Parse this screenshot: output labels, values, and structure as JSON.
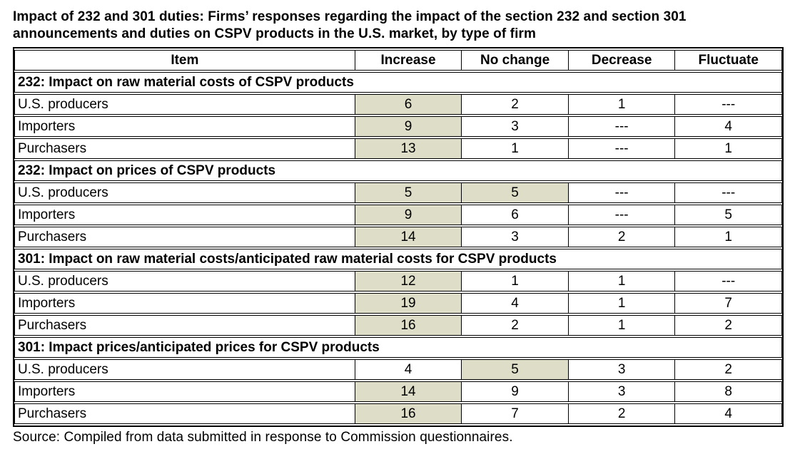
{
  "title": "Impact of 232 and 301 duties: Firms’ responses regarding the impact of the section 232 and section 301 announcements and duties on CSPV products in the U.S. market, by type of firm",
  "source": "Source: Compiled from data submitted in response to Commission questionnaires.",
  "colors": {
    "highlight": "#deddc7",
    "border": "#000000",
    "background": "#ffffff",
    "text": "#000000"
  },
  "table": {
    "columns": [
      "Item",
      "Increase",
      "No change",
      "Decrease",
      "Fluctuate"
    ],
    "column_widths_pct": [
      44.4,
      13.9,
      13.9,
      13.9,
      13.9
    ],
    "sections": [
      {
        "header": "232: Impact on raw material costs of CSPV products",
        "rows": [
          {
            "item": "U.S. producers",
            "values": [
              "6",
              "2",
              "1",
              "---"
            ],
            "highlighted": [
              0
            ]
          },
          {
            "item": "Importers",
            "values": [
              "9",
              "3",
              "---",
              "4"
            ],
            "highlighted": [
              0
            ]
          },
          {
            "item": "Purchasers",
            "values": [
              "13",
              "1",
              "---",
              "1"
            ],
            "highlighted": [
              0
            ]
          }
        ]
      },
      {
        "header": "232: Impact on prices of CSPV products",
        "rows": [
          {
            "item": "U.S. producers",
            "values": [
              "5",
              "5",
              "---",
              "---"
            ],
            "highlighted": [
              0,
              1
            ]
          },
          {
            "item": "Importers",
            "values": [
              "9",
              "6",
              "---",
              "5"
            ],
            "highlighted": [
              0
            ]
          },
          {
            "item": "Purchasers",
            "values": [
              "14",
              "3",
              "2",
              "1"
            ],
            "highlighted": [
              0
            ]
          }
        ]
      },
      {
        "header": "301: Impact on raw material costs/anticipated raw material costs for CSPV products",
        "rows": [
          {
            "item": "U.S. producers",
            "values": [
              "12",
              "1",
              "1",
              "---"
            ],
            "highlighted": [
              0
            ]
          },
          {
            "item": "Importers",
            "values": [
              "19",
              "4",
              "1",
              "7"
            ],
            "highlighted": [
              0
            ]
          },
          {
            "item": "Purchasers",
            "values": [
              "16",
              "2",
              "1",
              "2"
            ],
            "highlighted": [
              0
            ]
          }
        ]
      },
      {
        "header": "301: Impact prices/anticipated prices for CSPV products",
        "rows": [
          {
            "item": "U.S. producers",
            "values": [
              "4",
              "5",
              "3",
              "2"
            ],
            "highlighted": [
              1
            ]
          },
          {
            "item": "Importers",
            "values": [
              "14",
              "9",
              "3",
              "8"
            ],
            "highlighted": [
              0
            ]
          },
          {
            "item": "Purchasers",
            "values": [
              "16",
              "7",
              "2",
              "4"
            ],
            "highlighted": [
              0
            ]
          }
        ]
      }
    ]
  }
}
